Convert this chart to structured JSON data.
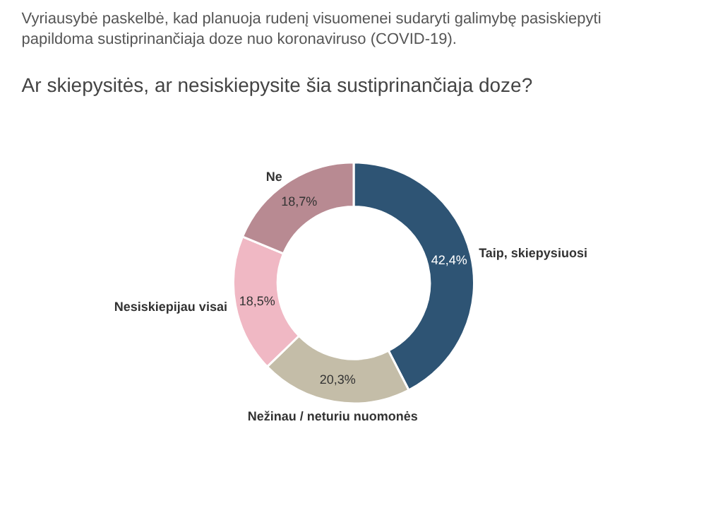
{
  "chart_data": {
    "type": "donut",
    "subtitle": "Vyriausybė paskelbė, kad planuoja rudenį visuomenei sudaryti galimybę pasiskiepyti papildoma sustiprinančiaja doze nuo koronaviruso (COVID-19).",
    "title": "Ar skiepysitės, ar nesiskiepysite šia sustiprinančiaja doze?",
    "categories": [
      "Taip, skiepysiuosi",
      "Nežinau / neturiu nuomonės",
      "Nesiskiepijau visai",
      "Ne"
    ],
    "values": [
      42.4,
      20.3,
      18.5,
      18.7
    ],
    "colors": [
      "#2e5474",
      "#c4bda8",
      "#f0b8c4",
      "#b88a92"
    ],
    "value_labels": [
      "42,4%",
      "20,3%",
      "18,5%",
      "18,7%"
    ]
  }
}
